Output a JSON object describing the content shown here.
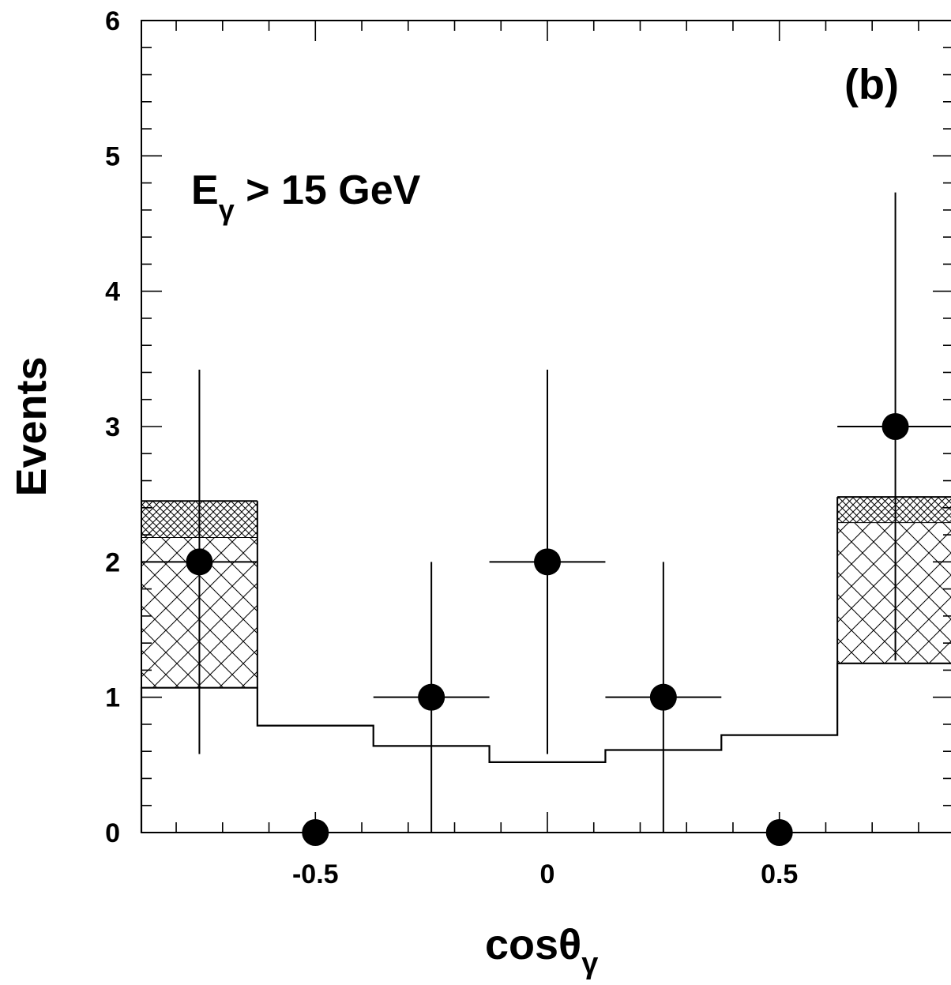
{
  "chart_data": {
    "type": "scatter",
    "panel_label": "(b)",
    "annotation": {
      "main": "E",
      "subscript": "γ",
      "rest": " > 15 GeV"
    },
    "xlabel": {
      "main": "cosθ",
      "subscript": "γ"
    },
    "ylabel": "Events",
    "xlim": [
      -0.875,
      0.875
    ],
    "ylim": [
      0,
      6
    ],
    "x_ticks": [
      {
        "value": -0.5,
        "label": "-0.5"
      },
      {
        "value": 0,
        "label": "0"
      },
      {
        "value": 0.5,
        "label": "0.5"
      }
    ],
    "y_ticks": [
      {
        "value": 0,
        "label": "0"
      },
      {
        "value": 1,
        "label": "1"
      },
      {
        "value": 2,
        "label": "2"
      },
      {
        "value": 3,
        "label": "3"
      },
      {
        "value": 4,
        "label": "4"
      },
      {
        "value": 5,
        "label": "5"
      },
      {
        "value": 6,
        "label": "6"
      }
    ],
    "grid": false,
    "data_points": [
      {
        "x": -0.75,
        "y": 2,
        "xerr": 0.125,
        "yerr_low": 1.42,
        "yerr_high": 1.42
      },
      {
        "x": -0.5,
        "y": 0,
        "xerr": 0.125,
        "yerr_low": 0,
        "yerr_high": 0
      },
      {
        "x": -0.25,
        "y": 1,
        "xerr": 0.125,
        "yerr_low": 1.0,
        "yerr_high": 1.0
      },
      {
        "x": 0.0,
        "y": 2,
        "xerr": 0.125,
        "yerr_low": 1.42,
        "yerr_high": 1.42
      },
      {
        "x": 0.25,
        "y": 1,
        "xerr": 0.125,
        "yerr_low": 1.0,
        "yerr_high": 1.0
      },
      {
        "x": 0.5,
        "y": 0,
        "xerr": 0.125,
        "yerr_low": 0,
        "yerr_high": 0
      },
      {
        "x": 0.75,
        "y": 3,
        "xerr": 0.125,
        "yerr_low": 1.73,
        "yerr_high": 1.73
      }
    ],
    "background_histogram": {
      "edges": [
        -0.875,
        -0.625,
        -0.375,
        -0.125,
        0.125,
        0.375,
        0.625,
        0.875
      ],
      "values": [
        1.07,
        0.79,
        0.64,
        0.52,
        0.61,
        0.72,
        1.25
      ]
    },
    "hatched_band": [
      {
        "x_low": -0.875,
        "x_high": -0.625,
        "base": 1.07,
        "mid": 2.18,
        "top": 2.45
      },
      {
        "x_low": 0.625,
        "x_high": 0.875,
        "base": 1.25,
        "mid": 2.29,
        "top": 2.48
      }
    ]
  }
}
